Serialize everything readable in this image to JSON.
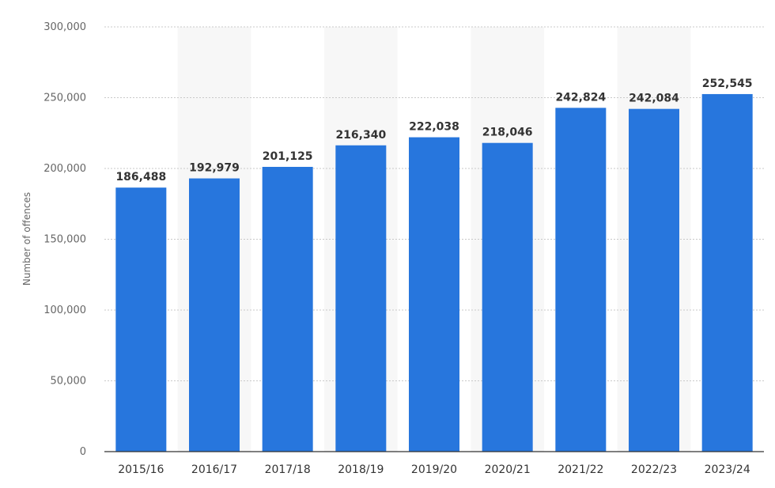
{
  "chart_data": {
    "type": "bar",
    "title": "",
    "xlabel": "",
    "ylabel": "Number of offences",
    "categories": [
      "2015/16",
      "2016/17",
      "2017/18",
      "2018/19",
      "2019/20",
      "2020/21",
      "2021/22",
      "2022/23",
      "2023/24"
    ],
    "values": [
      186488,
      192979,
      201125,
      216340,
      222038,
      218046,
      242824,
      242084,
      252545
    ],
    "data_labels": [
      "186,488",
      "192,979",
      "201,125",
      "216,340",
      "222,038",
      "218,046",
      "242,824",
      "242,084",
      "252,545"
    ],
    "yticks": [
      0,
      50000,
      100000,
      150000,
      200000,
      250000,
      300000
    ],
    "ytick_labels": [
      "0",
      "50,000",
      "100,000",
      "150,000",
      "200,000",
      "250,000",
      "300,000"
    ],
    "ylim": [
      0,
      300000
    ],
    "grid": true,
    "legend": "none",
    "colors": {
      "bar": "#2776DD",
      "band": "#F7F7F7",
      "grid": "#C9C9C9",
      "axis": "#333333"
    }
  }
}
